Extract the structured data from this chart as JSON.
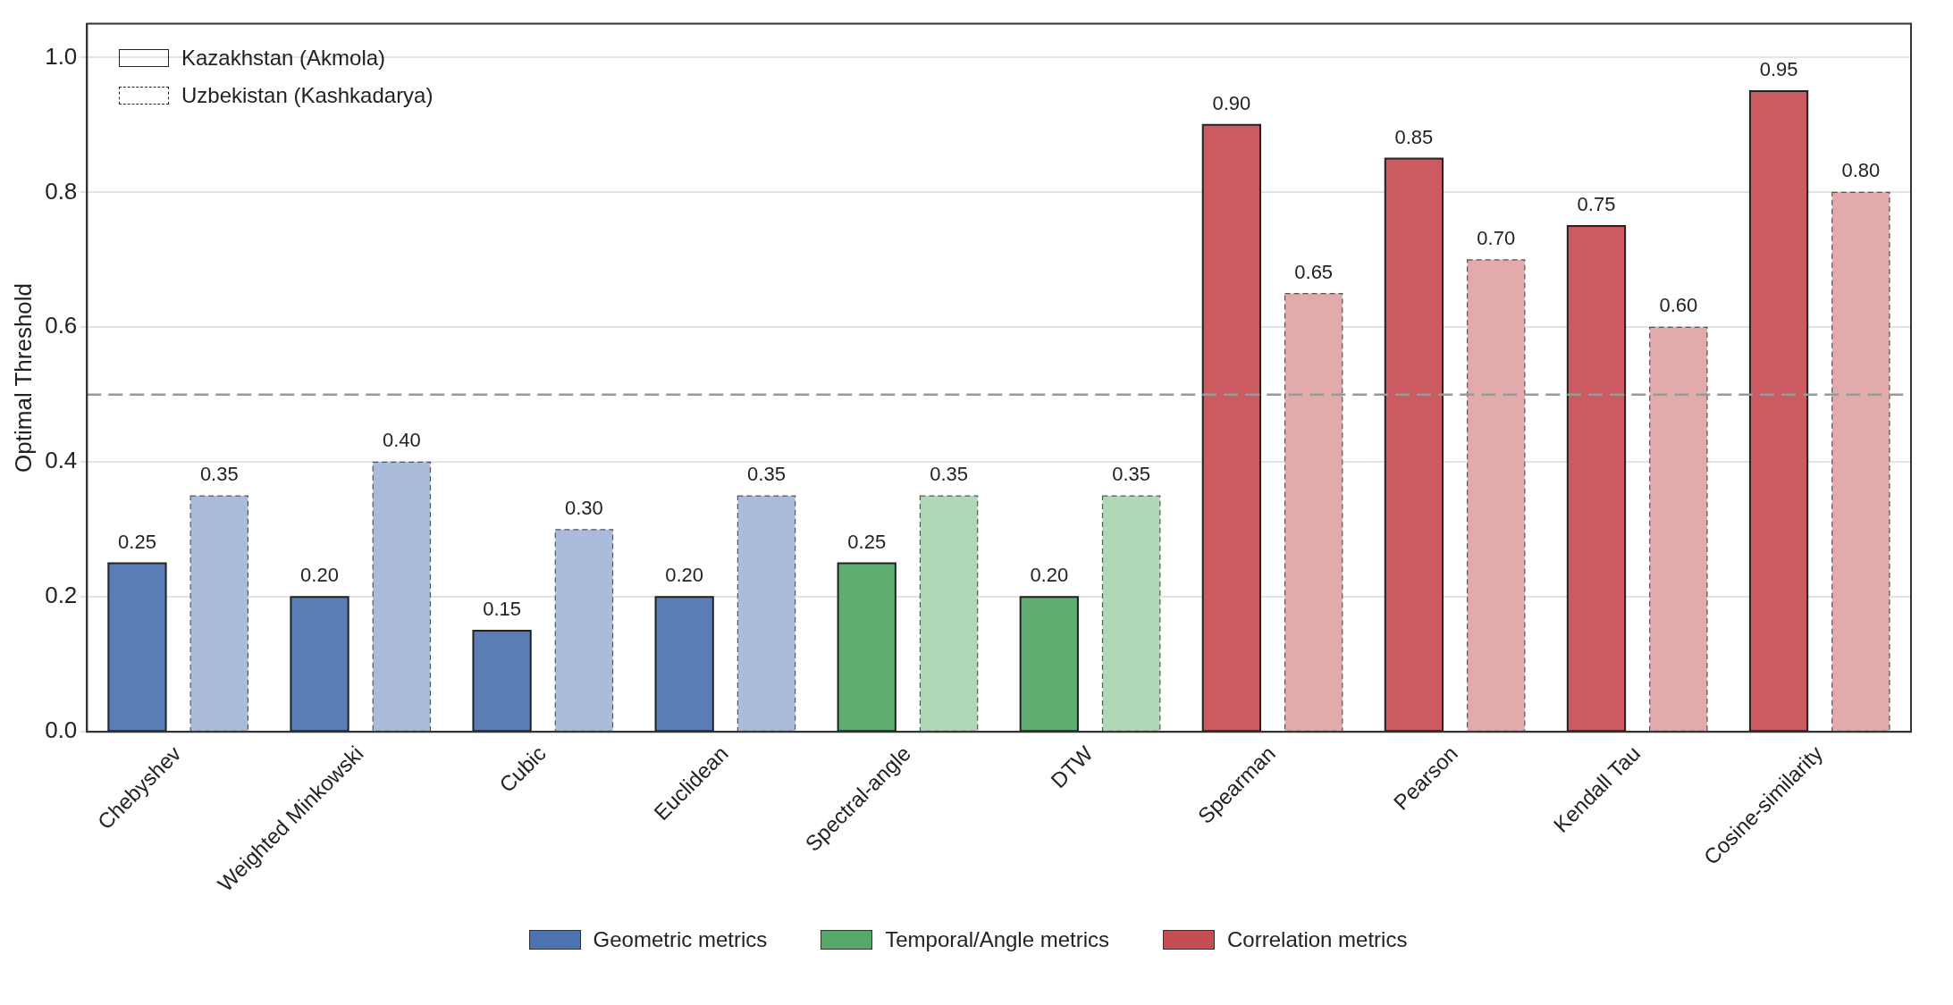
{
  "chart_data": {
    "type": "bar",
    "ylabel": "Optimal Threshold",
    "categories": [
      "Chebyshev",
      "Weighted Minkowski",
      "Cubic",
      "Euclidean",
      "Spectral-angle",
      "DTW",
      "Spearman",
      "Pearson",
      "Kendall Tau",
      "Cosine-similarity"
    ],
    "series": [
      {
        "line_style": "solid",
        "colors": [
          "#5a7db5",
          "#5a7db5",
          "#5a7db5",
          "#5a7db5",
          "#5fad6f",
          "#5fad6f",
          "#cb5b60",
          "#cb5b60",
          "#cb5b60",
          "#cb5b60"
        ],
        "values": [
          0.25,
          0.2,
          0.15,
          0.2,
          0.25,
          0.2,
          0.9,
          0.85,
          0.75,
          0.95
        ],
        "value_labels": [
          "0.25",
          "0.20",
          "0.15",
          "0.20",
          "0.25",
          "0.20",
          "0.90",
          "0.85",
          "0.75",
          "0.95"
        ]
      },
      {
        "line_style": "dashed",
        "colors": [
          "#aabbdb",
          "#aabbdb",
          "#aabbdb",
          "#aabbdb",
          "#b0d8b8",
          "#b0d8b8",
          "#e3aaab",
          "#e3aaab",
          "#e3aaab",
          "#e3aaab"
        ],
        "values": [
          0.35,
          0.4,
          0.3,
          0.35,
          0.35,
          0.35,
          0.65,
          0.7,
          0.6,
          0.8
        ],
        "value_labels": [
          "0.35",
          "0.40",
          "0.30",
          "0.35",
          "0.35",
          "0.35",
          "0.65",
          "0.70",
          "0.60",
          "0.80"
        ]
      },
      {
        "name": "Geometric metrics",
        "color": "#4c72b0",
        "values": [
          null,
          null,
          null,
          null,
          null,
          null,
          null,
          null,
          null,
          null
        ]
      },
      {
        "name": "Temporal/Angle metrics",
        "color": "#55a868",
        "values": [
          null,
          null,
          null,
          null,
          null,
          null,
          null,
          null,
          null,
          null
        ]
      },
      {
        "name": "Correlation metrics",
        "color": "#c44e52",
        "values": [
          null,
          null,
          null,
          null,
          null,
          null,
          null,
          null,
          null,
          null
        ]
      }
    ],
    "annotations": [
      "Kazakhstan (Akmola)",
      "Uzbekistan (Kashkadarya)"
    ],
    "ylim": [
      0,
      1.05
    ],
    "yticks": [
      {
        "value": 0,
        "label": "0.0"
      },
      {
        "value": 0.2,
        "label": "0.2"
      },
      {
        "value": 0.4,
        "label": "0.4"
      },
      {
        "value": 0.6,
        "label": "0.6"
      },
      {
        "value": 0.8,
        "label": "0.8"
      },
      {
        "value": 1,
        "label": "1.0"
      }
    ],
    "grid": "y",
    "legend": "bottom",
    "ref_lines": [
      {
        "axis": "y",
        "value": 0.5,
        "color": "#999999",
        "line_style": "dashed"
      }
    ]
  }
}
